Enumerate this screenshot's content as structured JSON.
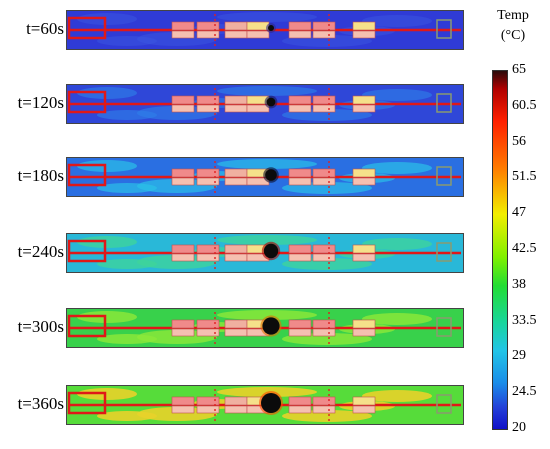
{
  "legend": {
    "title_line1": "Temp",
    "title_line2": "(°C)",
    "ticks": [
      "65",
      "60.5",
      "56",
      "51.5",
      "47",
      "42.5",
      "38",
      "33.5",
      "29",
      "24.5",
      "20"
    ],
    "colors": [
      "#2a0a0a",
      "#b00000",
      "#ff2000",
      "#ff7a00",
      "#f2ee00",
      "#80f000",
      "#22dd33",
      "#19d69a",
      "#22c5e6",
      "#1a8de8",
      "#2340d8",
      "#1010c8"
    ]
  },
  "panels": [
    {
      "label": "t=60s",
      "base": "#2f3bd6",
      "mottle": "#3a55e0",
      "heat": "#2d2a8c"
    },
    {
      "label": "t=120s",
      "base": "#2f47d8",
      "mottle": "#2f7fe8",
      "heat": "#1a1a5a"
    },
    {
      "label": "t=180s",
      "base": "#2a6fe2",
      "mottle": "#2ac0e8",
      "heat": "#0b0b2a"
    },
    {
      "label": "t=240s",
      "base": "#29b8d8",
      "mottle": "#3fd59a",
      "heat": "#b00000"
    },
    {
      "label": "t=300s",
      "base": "#38d14b",
      "mottle": "#8ae83a",
      "heat": "#e07000"
    },
    {
      "label": "t=360s",
      "base": "#56dc3a",
      "mottle": "#e8d22a",
      "heat": "#ff4a00"
    }
  ]
}
